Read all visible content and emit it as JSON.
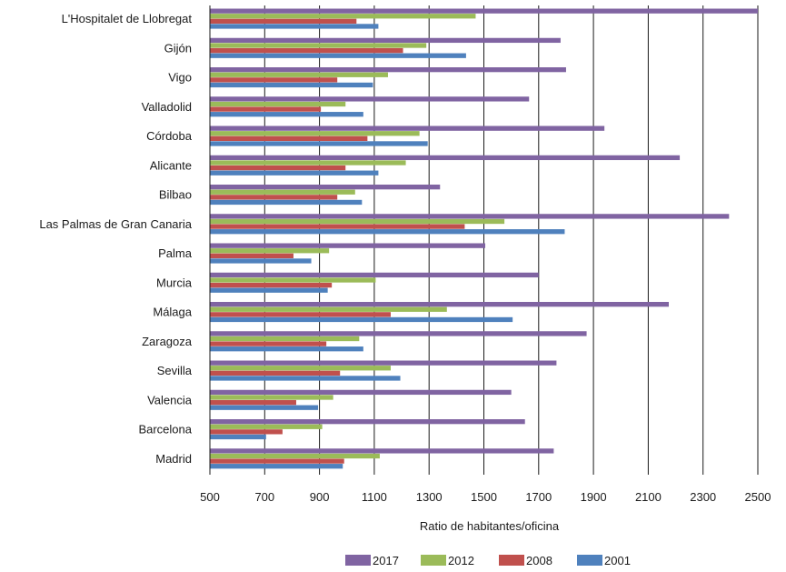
{
  "chart_data": {
    "type": "bar",
    "orientation": "horizontal",
    "categories": [
      "L'Hospitalet de Llobregat",
      "Gijón",
      "Vigo",
      "Valladolid",
      "Córdoba",
      "Alicante",
      "Bilbao",
      "Las Palmas de Gran Canaria",
      "Palma",
      "Murcia",
      "Málaga",
      "Zaragoza",
      "Sevilla",
      "Valencia",
      "Barcelona",
      "Madrid"
    ],
    "series": [
      {
        "name": "2017",
        "color": "#8064a2",
        "values": [
          2500,
          1780,
          1800,
          1665,
          1940,
          2215,
          1340,
          2395,
          1505,
          1700,
          2175,
          1875,
          1765,
          1600,
          1650,
          1755
        ]
      },
      {
        "name": "2012",
        "color": "#9bbb59",
        "values": [
          1470,
          1290,
          1150,
          995,
          1265,
          1215,
          1030,
          1575,
          935,
          1105,
          1365,
          1045,
          1160,
          950,
          910,
          1120
        ]
      },
      {
        "name": "2008",
        "color": "#c0504d",
        "values": [
          1035,
          1205,
          965,
          905,
          1075,
          995,
          965,
          1430,
          805,
          945,
          1160,
          925,
          975,
          815,
          765,
          990
        ]
      },
      {
        "name": "2001",
        "color": "#4f81bd",
        "values": [
          1115,
          1435,
          1095,
          1060,
          1295,
          1115,
          1055,
          1795,
          870,
          930,
          1605,
          1060,
          1195,
          895,
          705,
          985
        ]
      }
    ],
    "xlabel": "Ratio de habitantes/oficina",
    "xlim": [
      500,
      2500
    ],
    "xticks": [
      500,
      700,
      900,
      1100,
      1300,
      1500,
      1700,
      1900,
      2100,
      2300,
      2500
    ],
    "grid": "vertical",
    "legend": {
      "placement": "bottom-center",
      "order": [
        "2017",
        "2012",
        "2008",
        "2001"
      ]
    }
  }
}
